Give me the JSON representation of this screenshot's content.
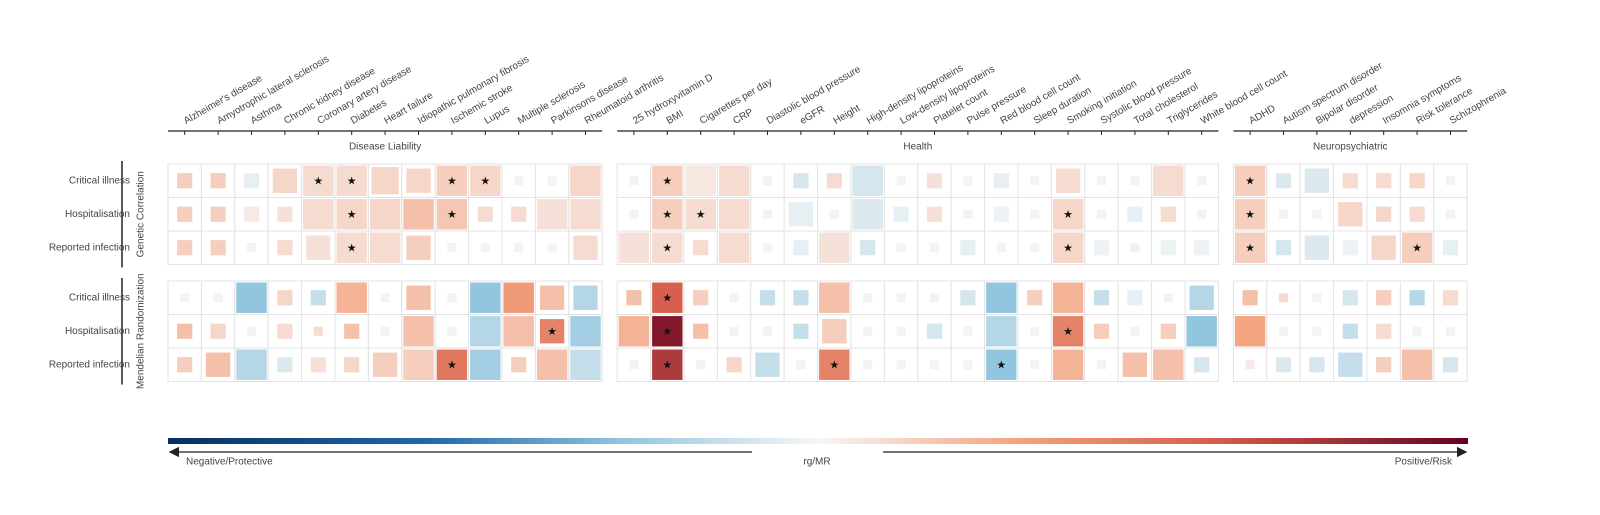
{
  "chart_data": {
    "type": "heatmap",
    "clim": [
      -1,
      1
    ],
    "star": "★",
    "groups": [
      {
        "name": "Disease Liability",
        "columns": [
          "Alzheimer's disease",
          "Amyotrophic lateral sclerosis",
          "Asthma",
          "Chronic kidney disease",
          "Coronary artery disease",
          "Diabetes",
          "Heart failure",
          "Idiopathic pulmonary fibrosis",
          "Ischemic stroke",
          "Lupus",
          "Multiple sclerosis",
          "Parkinsons disease",
          "Rheumatoid arthritis"
        ]
      },
      {
        "name": "Health",
        "columns": [
          "25 hydroxyvitamin D",
          "BMI",
          "Cigarettes per day",
          "CRP",
          "Diastolic blood pressure",
          "eGFR",
          "Height",
          "High-density lipoproteins",
          "Low-density lipoproteins",
          "Platelet count",
          "Pulse pressure",
          "Red blood cell count",
          "Sleep duration",
          "Smoking initiation",
          "Systolic blood pressure",
          "Total cholesterol",
          "Triglycerides",
          "White blood cell count"
        ]
      },
      {
        "name": "Neuropsychiatric",
        "columns": [
          "ADHD",
          "Autism spectrum disorder",
          "Bipolar disorder",
          "depression",
          "Insomnia symptoms",
          "Risk tolerance",
          "Schizophrenia"
        ]
      }
    ],
    "rows": [
      "Critical illness",
      "Hospitalisation",
      "Reported infection"
    ],
    "panels": [
      {
        "name": "Genetic Correlation",
        "values": [
          [
            0.15,
            0.15,
            -0.05,
            0.12,
            0.1,
            0.1,
            0.12,
            0.12,
            0.15,
            0.12,
            0.02,
            0.02,
            0.12,
            0.02,
            0.15,
            0.06,
            0.1,
            0.02,
            -0.1,
            0.1,
            -0.1,
            0.02,
            0.08,
            0.02,
            -0.05,
            0.02,
            0.1,
            0.02,
            0.02,
            0.1,
            0.02,
            0.15,
            -0.08,
            -0.08,
            0.1,
            0.1,
            0.12,
            0.02
          ],
          [
            0.15,
            0.15,
            0.05,
            0.08,
            0.1,
            0.12,
            0.12,
            0.2,
            0.18,
            0.1,
            0.1,
            0.08,
            0.1,
            0.02,
            0.15,
            0.1,
            0.1,
            0.02,
            -0.05,
            0.02,
            -0.08,
            -0.05,
            0.08,
            0.02,
            -0.03,
            0.02,
            0.12,
            0.02,
            -0.05,
            0.1,
            0.02,
            0.15,
            0.02,
            0.02,
            0.12,
            0.12,
            0.1,
            0.02
          ],
          [
            0.15,
            0.15,
            0.02,
            0.1,
            0.08,
            0.1,
            0.1,
            0.15,
            0.02,
            0.02,
            0.02,
            0.02,
            0.1,
            0.08,
            0.1,
            0.1,
            0.1,
            0.02,
            -0.05,
            0.08,
            -0.1,
            0.02,
            0.02,
            -0.05,
            0.02,
            0.02,
            0.12,
            -0.03,
            -0.03,
            -0.03,
            -0.03,
            0.15,
            -0.1,
            -0.08,
            -0.03,
            0.12,
            0.15,
            -0.05
          ]
        ],
        "sizes": [
          [
            0.5,
            0.5,
            0.5,
            0.8,
            1,
            1,
            0.9,
            0.8,
            1,
            1,
            0.3,
            0.3,
            1,
            0.3,
            1,
            1,
            1,
            0.3,
            0.5,
            0.5,
            1,
            0.3,
            0.5,
            0.3,
            0.5,
            0.3,
            0.8,
            0.3,
            0.3,
            1,
            0.3,
            1,
            0.5,
            0.8,
            0.5,
            0.5,
            0.5,
            0.3
          ],
          [
            0.5,
            0.5,
            0.5,
            0.5,
            1,
            1,
            1,
            1,
            1,
            0.5,
            0.5,
            1,
            1,
            0.3,
            1,
            1,
            1,
            0.3,
            0.8,
            0.3,
            1,
            0.5,
            0.5,
            0.3,
            0.5,
            0.3,
            1,
            0.3,
            0.5,
            0.5,
            0.3,
            1,
            0.3,
            0.3,
            0.8,
            0.5,
            0.5,
            0.3
          ],
          [
            0.5,
            0.5,
            0.3,
            0.5,
            0.8,
            1,
            1,
            0.8,
            0.3,
            0.3,
            0.3,
            0.3,
            0.8,
            1,
            1,
            0.5,
            1,
            0.3,
            0.5,
            1,
            0.5,
            0.3,
            0.3,
            0.5,
            0.3,
            0.3,
            1,
            0.5,
            0.3,
            0.5,
            0.5,
            1,
            0.5,
            0.8,
            0.5,
            0.8,
            1,
            0.5
          ]
        ],
        "stars": [
          [
            0,
            4
          ],
          [
            0,
            5
          ],
          [
            0,
            8
          ],
          [
            0,
            9
          ],
          [
            0,
            14
          ],
          [
            0,
            31
          ],
          [
            1,
            5
          ],
          [
            1,
            8
          ],
          [
            1,
            14
          ],
          [
            1,
            15
          ],
          [
            1,
            26
          ],
          [
            1,
            31
          ],
          [
            2,
            5
          ],
          [
            2,
            14
          ],
          [
            2,
            26
          ],
          [
            2,
            31
          ],
          [
            2,
            36
          ]
        ]
      },
      {
        "name": "Mendelian Randomization",
        "values": [
          [
            0.02,
            0.02,
            -0.3,
            0.12,
            -0.15,
            0.25,
            0.02,
            0.2,
            0.02,
            -0.3,
            0.35,
            0.2,
            -0.2,
            0.2,
            0.6,
            0.15,
            0.02,
            -0.15,
            -0.15,
            0.2,
            0.02,
            0.02,
            0.02,
            -0.1,
            -0.3,
            0.15,
            0.25,
            -0.15,
            -0.05,
            0.02,
            -0.2,
            0.2,
            0.1,
            0.02,
            -0.1,
            0.15,
            -0.2,
            0.1
          ],
          [
            0.2,
            0.12,
            0.02,
            0.1,
            0.1,
            0.2,
            0.02,
            0.2,
            0.02,
            -0.2,
            0.2,
            0.45,
            -0.25,
            0.25,
            0.9,
            0.2,
            0.02,
            0.02,
            -0.15,
            0.15,
            0.02,
            0.02,
            -0.1,
            0.02,
            -0.2,
            0.02,
            0.45,
            0.15,
            0.02,
            0.15,
            -0.3,
            0.3,
            0.02,
            0.02,
            -0.15,
            0.1,
            0.02,
            0.02
          ],
          [
            0.15,
            0.2,
            -0.2,
            -0.08,
            0.08,
            0.12,
            0.15,
            0.15,
            0.5,
            -0.25,
            0.15,
            0.2,
            -0.15,
            0.02,
            0.75,
            0.02,
            0.12,
            -0.15,
            0.02,
            0.45,
            0.02,
            0.02,
            0.02,
            0.02,
            -0.3,
            0.02,
            0.25,
            0.02,
            0.2,
            0.2,
            -0.1,
            0.05,
            -0.08,
            -0.1,
            -0.15,
            0.15,
            0.2,
            -0.1
          ]
        ],
        "sizes": [
          [
            0.3,
            0.3,
            1,
            0.5,
            0.5,
            1,
            0.3,
            0.8,
            0.3,
            1,
            1,
            0.8,
            0.8,
            0.5,
            1,
            0.5,
            0.3,
            0.5,
            0.5,
            1,
            0.3,
            0.3,
            0.3,
            0.5,
            1,
            0.5,
            1,
            0.5,
            0.5,
            0.3,
            0.8,
            0.5,
            0.3,
            0.3,
            0.5,
            0.5,
            0.5,
            0.5
          ],
          [
            0.5,
            0.5,
            0.3,
            0.5,
            0.3,
            0.5,
            0.3,
            1,
            0.3,
            1,
            1,
            0.8,
            1,
            1,
            1,
            0.5,
            0.3,
            0.3,
            0.5,
            0.8,
            0.3,
            0.3,
            0.5,
            0.3,
            1,
            0.3,
            1,
            0.5,
            0.3,
            0.5,
            1,
            1,
            0.3,
            0.3,
            0.5,
            0.5,
            0.3,
            0.3
          ],
          [
            0.5,
            0.8,
            1,
            0.5,
            0.5,
            0.5,
            0.8,
            1,
            1,
            1,
            0.5,
            1,
            1,
            0.3,
            1,
            0.3,
            0.5,
            0.8,
            0.3,
            1,
            0.3,
            0.3,
            0.3,
            0.3,
            1,
            0.3,
            1,
            0.3,
            0.8,
            1,
            0.5,
            0.3,
            0.5,
            0.5,
            0.8,
            0.5,
            1,
            0.5
          ]
        ],
        "stars": [
          [
            0,
            14
          ],
          [
            1,
            11
          ],
          [
            1,
            14
          ],
          [
            1,
            26
          ],
          [
            2,
            8
          ],
          [
            2,
            14
          ],
          [
            2,
            19
          ],
          [
            2,
            24
          ]
        ]
      }
    ],
    "colorbar_label": "rg/MR",
    "colorbar_left": "Negative/Protective",
    "colorbar_right": "Positive/Risk"
  }
}
